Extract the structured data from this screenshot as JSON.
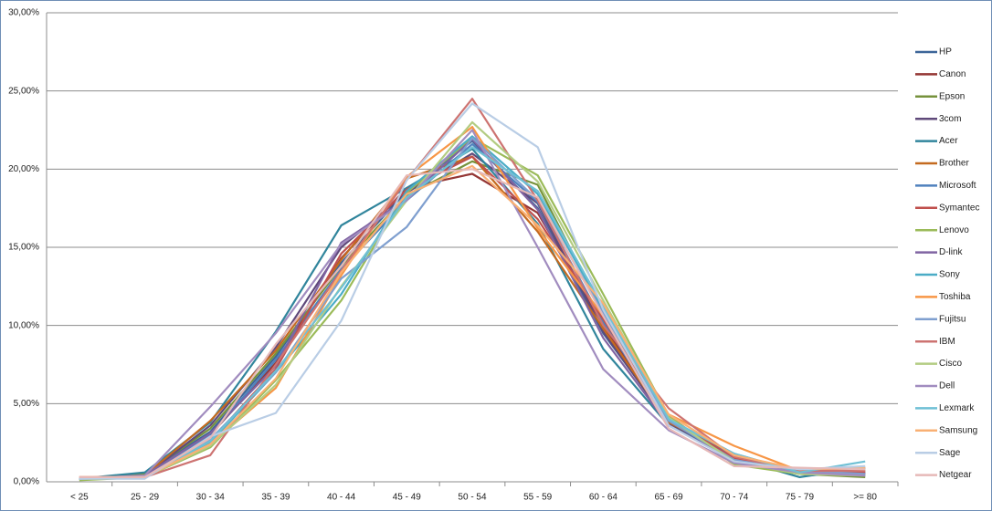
{
  "chart_data": {
    "type": "line",
    "categories": [
      "< 25",
      "25 - 29",
      "30 - 34",
      "35 - 39",
      "40 - 44",
      "45 - 49",
      "50 - 54",
      "55 - 59",
      "60 - 64",
      "65 - 69",
      "70 - 74",
      "75 - 79",
      ">= 80"
    ],
    "ylim": [
      0,
      30
    ],
    "yticks": [
      {
        "value": 0,
        "label": "0,00%"
      },
      {
        "value": 5,
        "label": "5,00%"
      },
      {
        "value": 10,
        "label": "10,00%"
      },
      {
        "value": 15,
        "label": "15,00%"
      },
      {
        "value": 20,
        "label": "20,00%"
      },
      {
        "value": 25,
        "label": "25,00%"
      },
      {
        "value": 30,
        "label": "30,00%"
      }
    ],
    "grid": true,
    "legend": "right",
    "series": [
      {
        "name": "HP",
        "color": "#3c6598",
        "values": [
          0.2,
          0.5,
          3.2,
          8.0,
          14.0,
          18.6,
          21.8,
          17.5,
          9.5,
          3.8,
          1.6,
          0.6,
          0.5
        ]
      },
      {
        "name": "Canon",
        "color": "#953735",
        "values": [
          0.2,
          0.4,
          3.0,
          7.6,
          14.3,
          18.8,
          19.7,
          17.2,
          10.0,
          3.9,
          1.3,
          0.6,
          0.6
        ]
      },
      {
        "name": "Epson",
        "color": "#76923c",
        "values": [
          0.2,
          0.5,
          3.4,
          8.2,
          13.8,
          18.3,
          20.5,
          19.0,
          10.8,
          4.2,
          1.2,
          0.5,
          0.3
        ]
      },
      {
        "name": "3com",
        "color": "#5f497a",
        "values": [
          0.2,
          0.4,
          3.6,
          8.6,
          15.0,
          18.5,
          21.0,
          17.8,
          9.6,
          3.7,
          1.4,
          0.6,
          0.5
        ]
      },
      {
        "name": "Acer",
        "color": "#31859c",
        "values": [
          0.2,
          0.6,
          3.8,
          9.6,
          16.4,
          18.8,
          21.3,
          16.5,
          8.5,
          3.6,
          1.5,
          0.3,
          0.9
        ]
      },
      {
        "name": "Brother",
        "color": "#c46a1f",
        "values": [
          0.2,
          0.4,
          3.9,
          8.4,
          14.2,
          19.4,
          20.8,
          16.0,
          9.8,
          3.8,
          1.7,
          0.7,
          0.7
        ]
      },
      {
        "name": "Microsoft",
        "color": "#4f81bd",
        "values": [
          0.2,
          0.4,
          3.0,
          7.8,
          13.6,
          18.0,
          21.6,
          17.9,
          10.2,
          3.9,
          1.6,
          0.6,
          0.6
        ]
      },
      {
        "name": "Symantec",
        "color": "#c0504d",
        "values": [
          0.2,
          0.3,
          2.6,
          7.2,
          14.6,
          18.7,
          20.8,
          16.8,
          10.4,
          4.1,
          1.5,
          0.6,
          0.6
        ]
      },
      {
        "name": "Lenovo",
        "color": "#9bbb59",
        "values": [
          0.1,
          0.3,
          2.2,
          6.5,
          11.6,
          18.5,
          22.0,
          19.6,
          12.0,
          4.2,
          1.1,
          0.5,
          0.4
        ]
      },
      {
        "name": "D-link",
        "color": "#8064a2",
        "values": [
          0.2,
          0.4,
          3.1,
          7.4,
          15.3,
          18.1,
          21.9,
          17.4,
          9.2,
          3.6,
          1.4,
          0.5,
          0.4
        ]
      },
      {
        "name": "Sony",
        "color": "#4bacc6",
        "values": [
          0.2,
          0.3,
          2.5,
          7.0,
          12.0,
          18.6,
          22.1,
          18.4,
          11.0,
          4.0,
          1.8,
          0.6,
          0.8
        ]
      },
      {
        "name": "Toshiba",
        "color": "#f79646",
        "values": [
          0.2,
          0.3,
          2.4,
          6.0,
          13.2,
          19.5,
          22.7,
          16.2,
          10.6,
          4.3,
          2.3,
          0.7,
          0.9
        ]
      },
      {
        "name": "Fujitsu",
        "color": "#7f9fcf",
        "values": [
          0.2,
          0.3,
          2.7,
          7.0,
          13.0,
          16.3,
          22.0,
          18.0,
          10.8,
          3.9,
          1.4,
          0.7,
          0.5
        ]
      },
      {
        "name": "IBM",
        "color": "#cd7371",
        "values": [
          0.3,
          0.3,
          1.7,
          7.5,
          13.5,
          19.3,
          24.5,
          18.0,
          10.0,
          4.7,
          1.6,
          0.7,
          0.7
        ]
      },
      {
        "name": "Cisco",
        "color": "#b3cc82",
        "values": [
          0.2,
          0.3,
          2.3,
          6.2,
          12.5,
          18.0,
          23.0,
          19.2,
          11.6,
          4.1,
          1.3,
          0.5,
          0.4
        ]
      },
      {
        "name": "Dell",
        "color": "#a18cbf",
        "values": [
          0.2,
          0.4,
          4.8,
          9.5,
          15.2,
          18.0,
          22.5,
          15.0,
          7.2,
          3.3,
          1.2,
          0.6,
          0.4
        ]
      },
      {
        "name": "Lexmark",
        "color": "#6fc0d5",
        "values": [
          0.2,
          0.3,
          2.6,
          7.1,
          12.4,
          18.2,
          21.4,
          18.6,
          11.2,
          4.0,
          1.8,
          0.6,
          1.3
        ]
      },
      {
        "name": "Samsung",
        "color": "#f9b074",
        "values": [
          0.3,
          0.3,
          2.4,
          6.6,
          13.4,
          18.4,
          20.2,
          16.4,
          11.4,
          4.3,
          1.7,
          0.8,
          0.9
        ]
      },
      {
        "name": "Sage",
        "color": "#b9cde5",
        "values": [
          0.2,
          0.2,
          2.9,
          4.4,
          10.3,
          19.3,
          24.2,
          21.4,
          11.0,
          3.6,
          1.3,
          0.8,
          1.0
        ]
      },
      {
        "name": "Netgear",
        "color": "#e6b9b8",
        "values": [
          0.3,
          0.3,
          2.8,
          8.8,
          13.8,
          19.6,
          20.0,
          18.2,
          10.6,
          3.4,
          1.0,
          0.9,
          0.8
        ]
      }
    ]
  }
}
